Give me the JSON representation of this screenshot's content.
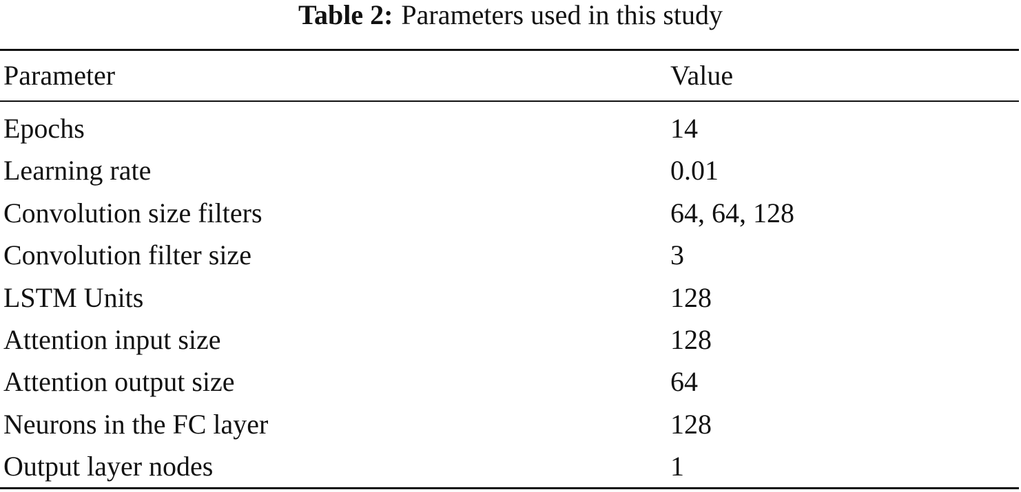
{
  "caption": {
    "label": "Table 2:",
    "text": "Parameters used in this study"
  },
  "table": {
    "header": [
      "Parameter",
      "Value"
    ],
    "rows": [
      [
        "Epochs",
        14
      ],
      [
        "Learning rate",
        0.01
      ],
      [
        "Convolution size filters",
        "64, 64, 128"
      ],
      [
        "Convolution filter size",
        3
      ],
      [
        "LSTM Units",
        128
      ],
      [
        "Attention input size",
        128
      ],
      [
        "Attention output size",
        64
      ],
      [
        "Neurons in the FC layer",
        128
      ],
      [
        "Output layer nodes",
        1
      ]
    ]
  }
}
